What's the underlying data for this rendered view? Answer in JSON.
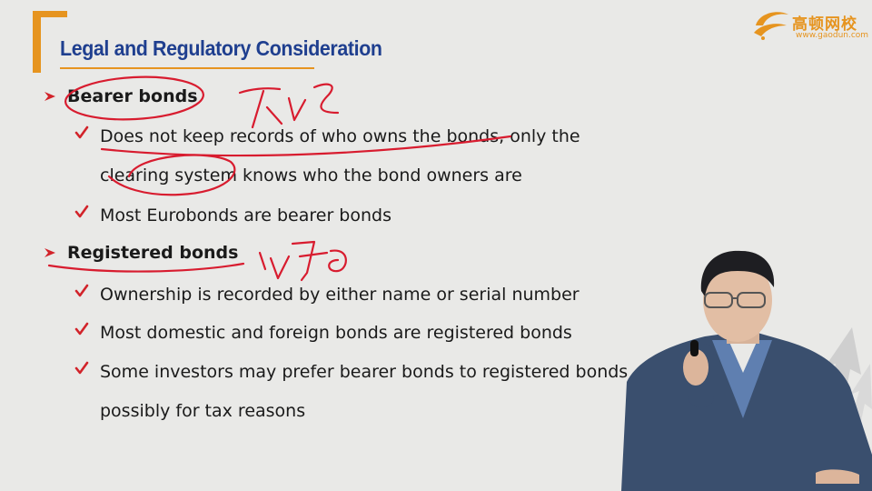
{
  "slide": {
    "title": "Legal and Regulatory Consideration",
    "colors": {
      "accent": "#e6941f",
      "title": "#1f3f8f",
      "arrow": "#d2232a",
      "check": "#d2232a",
      "ink": "#d81c2f"
    }
  },
  "logo": {
    "name_cn": "高顿网校",
    "url": "www.gaodun.com"
  },
  "bullets": [
    {
      "heading": "Bearer bonds",
      "items": [
        {
          "lines": [
            "Does not keep records of who owns the bonds, only the",
            "clearing system knows who the bond owners are"
          ]
        },
        {
          "lines": [
            "Most Eurobonds are bearer bonds"
          ]
        }
      ]
    },
    {
      "heading": "Registered bonds",
      "items": [
        {
          "lines": [
            "Ownership is recorded by either name or serial number"
          ]
        },
        {
          "lines": [
            "Most domestic and foreign bonds are registered bonds"
          ]
        },
        {
          "lines": [
            "Some investors may prefer bearer bonds to registered bonds",
            "possibly for tax reasons"
          ]
        }
      ]
    }
  ],
  "annotations": {
    "note_1": "不记名",
    "note_2": "记名"
  }
}
